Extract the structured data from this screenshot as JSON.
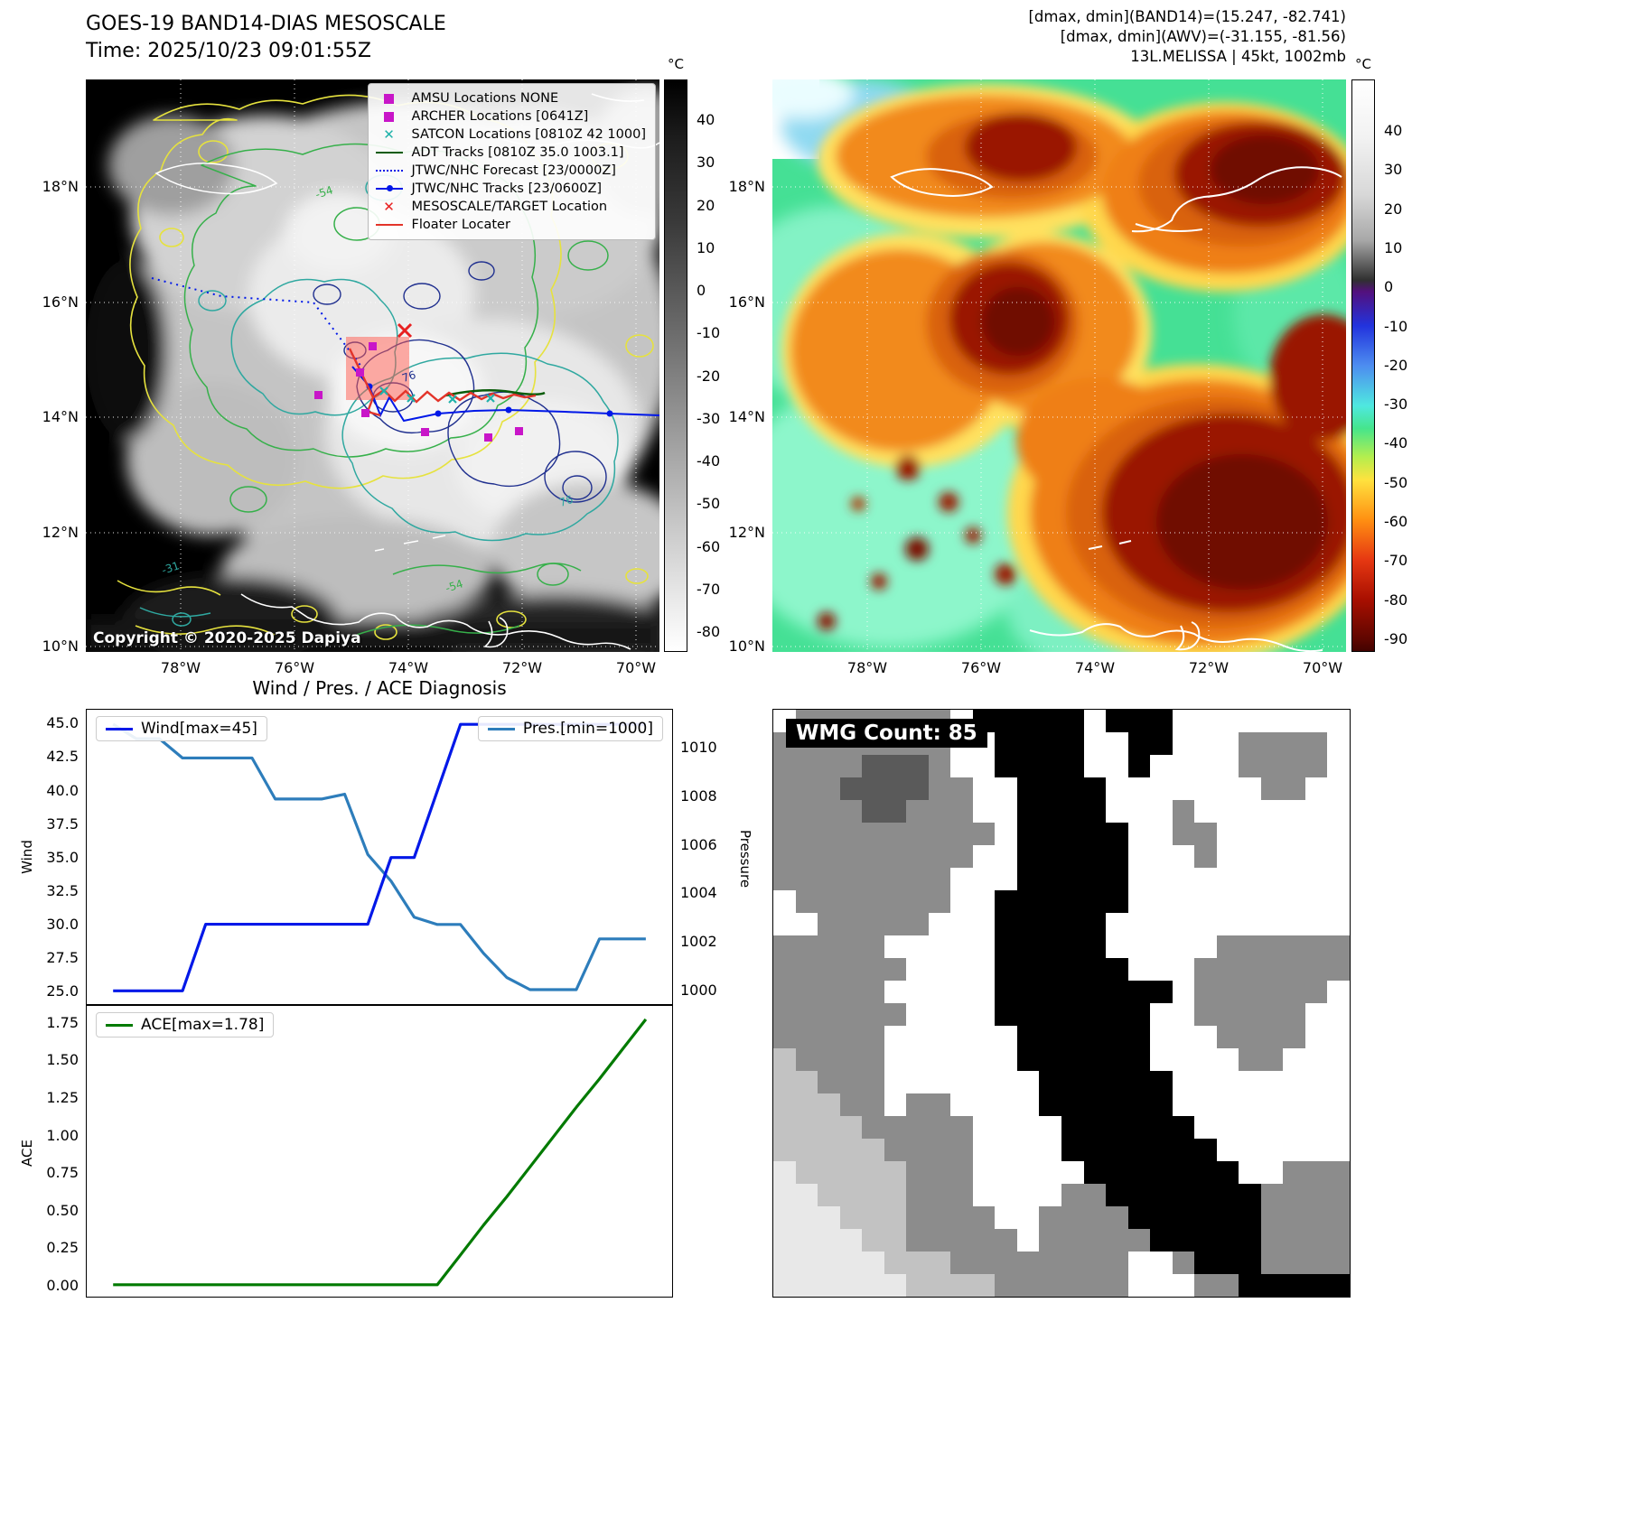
{
  "panel_tl": {
    "title": "GOES-19 BAND14-DIAS MESOSCALE",
    "subtitle": "Time: 2025/10/23 09:01:55Z",
    "copyright": "Copyright © 2020-2025 Dapiya",
    "legend": [
      {
        "marker": "square",
        "color": "#c816c8",
        "label": "AMSU Locations NONE"
      },
      {
        "marker": "square",
        "color": "#c816c8",
        "label": "ARCHER Locations [0641Z]"
      },
      {
        "marker": "x",
        "color": "#20b2aa",
        "label": "SATCON Locations [0810Z 42 1000]"
      },
      {
        "marker": "line",
        "color": "#0a5c0a",
        "label": "ADT Tracks [0810Z 35.0 1003.1]"
      },
      {
        "marker": "dotted-line",
        "color": "#0018e8",
        "label": "JTWC/NHC Forecast [23/0000Z]"
      },
      {
        "marker": "line-dot",
        "color": "#0018e8",
        "label": "JTWC/NHC Tracks [23/0600Z]"
      },
      {
        "marker": "x",
        "color": "#e82020",
        "label": "MESOSCALE/TARGET Location"
      },
      {
        "marker": "line",
        "color": "#e3342a",
        "label": "Floater Locater"
      }
    ],
    "lat_ticks": [
      "18°N",
      "16°N",
      "14°N",
      "12°N",
      "10°N"
    ],
    "lon_ticks": [
      "78°W",
      "76°W",
      "74°W",
      "72°W",
      "70°W"
    ],
    "colorbar": {
      "unit": "°C",
      "ticks": [
        "40",
        "30",
        "20",
        "10",
        "0",
        "-10",
        "-20",
        "-30",
        "-40",
        "-50",
        "-60",
        "-70",
        "-80"
      ]
    },
    "contour_labels": [
      "76",
      "76",
      "-54",
      "-54",
      "-31"
    ]
  },
  "panel_tr": {
    "title_lines": [
      "[dmax, dmin](BAND14)=(15.247, -82.741)",
      "[dmax, dmin](AWV)=(-31.155, -81.56)",
      "13L.MELISSA | 45kt, 1002mb"
    ],
    "lat_ticks": [
      "18°N",
      "16°N",
      "14°N",
      "12°N",
      "10°N"
    ],
    "lon_ticks": [
      "78°W",
      "76°W",
      "74°W",
      "72°W",
      "70°W"
    ],
    "colorbar": {
      "unit": "°C",
      "ticks": [
        "40",
        "30",
        "20",
        "10",
        "0",
        "-10",
        "-20",
        "-30",
        "-40",
        "-50",
        "-60",
        "-70",
        "-80",
        "-90"
      ]
    }
  },
  "panel_bl": {
    "title": "Wind / Pres. / ACE Diagnosis"
  },
  "panel_br": {
    "label": "WMG Count: 85",
    "palette": {
      ".": "#ffffff",
      "g": "#8c8c8c",
      "d": "#5a5a5a",
      "l": "#c2c2c2",
      "e": "#e8e8e8",
      "k": "#000000"
    },
    "grid_rows": [
      ".ggggggg.kkkkk.kkk........",
      "gggggggg..kkkk..kk...gggg.",
      "ggggdddg..kkkk..k....gggg.",
      "gggddddgg..kkkk.......gg..",
      "ggggddggg..kkkk...g.......",
      "gggggggggg.kkkkk..gg......",
      "ggggggggg..kkkkk...g......",
      "gggggggg...kkkkk..........",
      ".ggggggg..kkkkkk..........",
      "..ggggg...kkkkk...........",
      "ggggg.....kkkkk.....gggggg",
      "gggggg....kkkkkk...ggggggg",
      "ggggg.....kkkkkkkk.gggggg.",
      "gggggg....kkkkkkk..ggggg..",
      "ggggg......kkkkkk...gggg..",
      "lgggg......kkkkkk....gg...",
      "llggg.......kkkkkk........",
      "lllgg.gg....kkkkkk........",
      "llllggggg....kkkkkk.......",
      "lllllgggg....kkkkkkk......",
      "elllllggg.....kkkkkkk..ggg",
      "eellllggg....ggkkkkkkkgggg",
      "eeelllgggg..ggggkkkkkkgggg",
      "eeeellggggg.gggggkkkkkgggg",
      "eeeeelllgggggggg..gkkkgggg",
      "eeeeeellllgggggg...ggkkkkk"
    ]
  },
  "chart_data": [
    {
      "type": "line",
      "title": "Wind / Pres. / ACE Diagnosis",
      "x_note": "time steps (x axis unlabeled in figure)",
      "series": [
        {
          "name": "Wind[max=45]",
          "axis": "left",
          "color": "#0018e8",
          "values": [
            25,
            25,
            25,
            25,
            30,
            30,
            30,
            30,
            30,
            30,
            30,
            30,
            35,
            35,
            40,
            45,
            45,
            45,
            45,
            45,
            45,
            45,
            45,
            45
          ]
        },
        {
          "name": "Pres.[min=1000]",
          "axis": "right",
          "color": "#2d7dbb",
          "values": [
            1011,
            1010.4,
            1010.4,
            1009.6,
            1009.6,
            1009.6,
            1009.6,
            1007.9,
            1007.9,
            1007.9,
            1008.1,
            1005.6,
            1004.5,
            1003,
            1002.7,
            1002.7,
            1001.5,
            1000.5,
            1000,
            1000,
            1000,
            1002.1,
            1002.1,
            1002.1
          ]
        }
      ],
      "ylabel_left": "Wind",
      "ylabel_right": "Pressure",
      "yticks_left": [
        25.0,
        27.5,
        30.0,
        32.5,
        35.0,
        37.5,
        40.0,
        42.5,
        45.0
      ],
      "yticks_right": [
        1000,
        1002,
        1004,
        1006,
        1008,
        1010
      ],
      "ylim_left": [
        24.0,
        46.1
      ],
      "ylim_right": [
        999.4,
        1011.6
      ],
      "grid": false,
      "legend_position": "upper-left and upper-right"
    },
    {
      "type": "line",
      "series": [
        {
          "name": "ACE[max=1.78]",
          "color": "#007a00",
          "values": [
            0,
            0,
            0,
            0,
            0,
            0,
            0,
            0,
            0,
            0,
            0,
            0,
            0,
            0,
            0,
            0.2,
            0.4,
            0.59,
            0.79,
            0.99,
            1.19,
            1.38,
            1.58,
            1.78
          ]
        }
      ],
      "ylabel": "ACE",
      "yticks": [
        0.0,
        0.25,
        0.5,
        0.75,
        1.0,
        1.25,
        1.5,
        1.75
      ],
      "ylim": [
        -0.08,
        1.87
      ],
      "grid": false,
      "legend_position": "upper-left"
    }
  ]
}
